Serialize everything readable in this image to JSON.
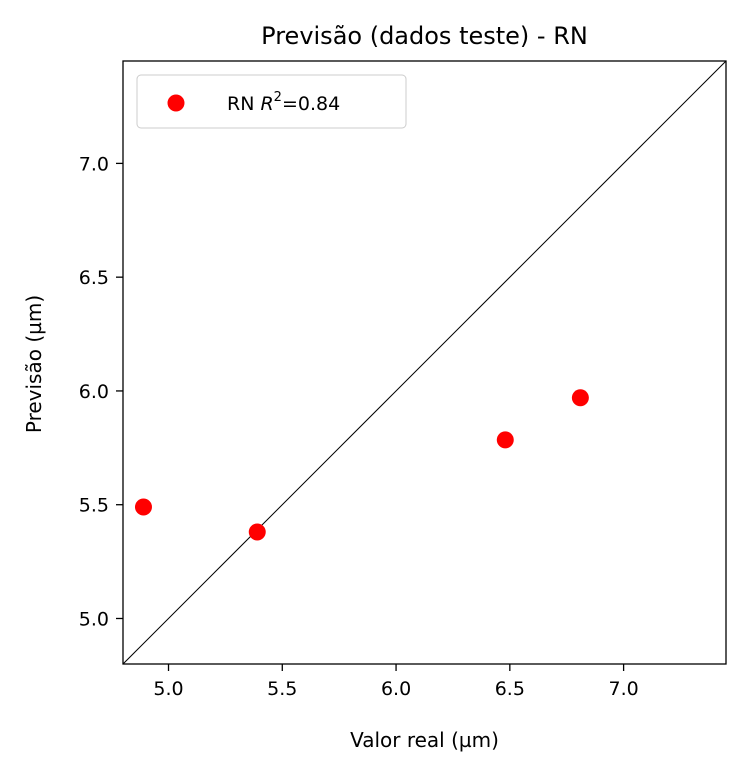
{
  "chart_data": {
    "type": "scatter",
    "title": "Previsão (dados teste) - RN",
    "xlabel": "Valor real (µm)",
    "ylabel": "Previsão (µm)",
    "xlim": [
      4.8,
      7.45
    ],
    "ylim": [
      4.8,
      7.45
    ],
    "xticks": [
      "5.0",
      "5.5",
      "6.0",
      "6.5",
      "7.0"
    ],
    "yticks": [
      "5.0",
      "5.5",
      "6.0",
      "6.5",
      "7.0"
    ],
    "grid": false,
    "legend_position": "top-left",
    "reference_line": "y = x",
    "series": [
      {
        "name": "RN R²=0.84",
        "legend_label": {
          "prefix": "RN ",
          "italic": "R",
          "sup": "2",
          "suffix": "=0.84"
        },
        "color": "#ff0000",
        "x": [
          4.89,
          5.39,
          6.48,
          6.81
        ],
        "y": [
          5.49,
          5.38,
          5.785,
          5.97
        ]
      }
    ]
  }
}
